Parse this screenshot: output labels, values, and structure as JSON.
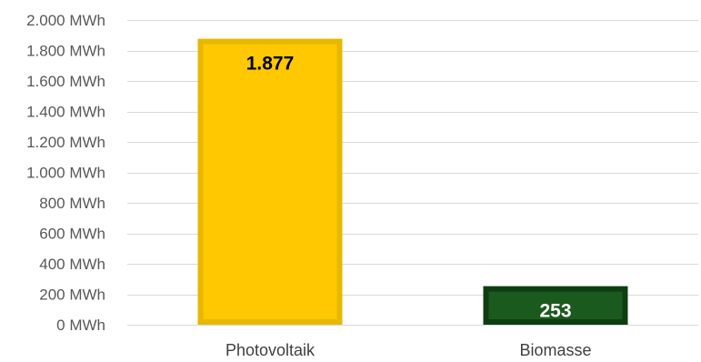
{
  "chart_data": {
    "type": "bar",
    "categories": [
      "Photovoltaik",
      "Biomasse"
    ],
    "values": [
      1877,
      253
    ],
    "data_labels": [
      "1.877",
      "253"
    ],
    "ylim": [
      0,
      2000
    ],
    "ytick_values": [
      0,
      200,
      400,
      600,
      800,
      1000,
      1200,
      1400,
      1600,
      1800,
      2000
    ],
    "ytick_labels": [
      "0 MWh",
      "200 MWh",
      "400 MWh",
      "600 MWh",
      "800 MWh",
      "1.000 MWh",
      "1.200 MWh",
      "1.400 MWh",
      "1.600 MWh",
      "1.800 MWh",
      "2.000 MWh"
    ],
    "title": "",
    "xlabel": "",
    "ylabel": "",
    "grid": true,
    "legend": "none",
    "colors": {
      "bars": [
        {
          "fill": "#ffc800",
          "border": "#e6b800",
          "label": "#000000"
        },
        {
          "fill": "#1b5a1e",
          "border": "#0f3d12",
          "label": "#ffffff"
        }
      ],
      "grid": "#d9d9d9",
      "tick_text": "#595959"
    }
  }
}
